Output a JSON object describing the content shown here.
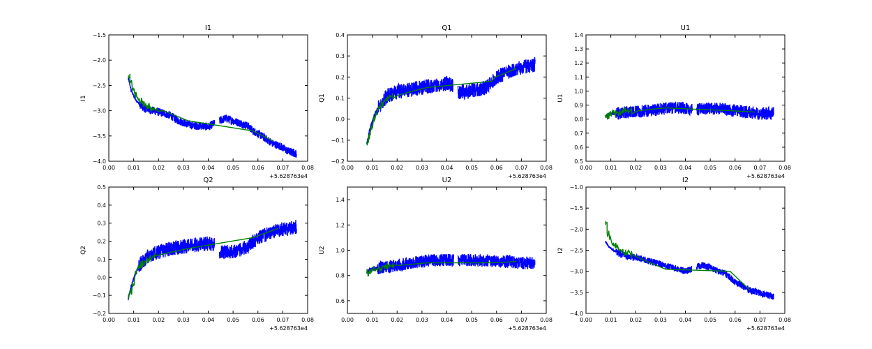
{
  "chart_data": [
    {
      "type": "line",
      "title": "I1",
      "xlabel": "",
      "ylabel": "I1",
      "x_offset_label": "+5.628763e4",
      "xlim": [
        0.0,
        0.08
      ],
      "ylim": [
        -4.0,
        -1.5
      ],
      "xticks": [
        "0.00",
        "0.01",
        "0.02",
        "0.03",
        "0.04",
        "0.05",
        "0.06",
        "0.07",
        "0.08"
      ],
      "yticks": [
        "−4.0",
        "−3.5",
        "−3.0",
        "−2.5",
        "−2.0",
        "−1.5"
      ],
      "grid": false,
      "series": [
        {
          "color": "#0000ff",
          "gap": [
            0.0425,
            0.0445
          ],
          "amp": 0.08,
          "x": [
            0.0078,
            0.009,
            0.011,
            0.014,
            0.018,
            0.022,
            0.025,
            0.028,
            0.031,
            0.034,
            0.037,
            0.04,
            0.0425,
            0.0445,
            0.047,
            0.05,
            0.053,
            0.056,
            0.058,
            0.06,
            0.063,
            0.066,
            0.069,
            0.072,
            0.0755
          ],
          "y": [
            -2.35,
            -2.6,
            -2.8,
            -2.95,
            -3.0,
            -3.05,
            -3.1,
            -3.2,
            -3.25,
            -3.3,
            -3.3,
            -3.32,
            -3.25,
            -3.2,
            -3.15,
            -3.2,
            -3.25,
            -3.3,
            -3.4,
            -3.45,
            -3.55,
            -3.65,
            -3.7,
            -3.8,
            -3.85
          ]
        },
        {
          "color": "#008000",
          "x": [
            0.0078,
            0.0085,
            0.0095,
            0.0105,
            0.0115,
            0.0125,
            0.0135,
            0.0145,
            0.0155,
            0.0165,
            0.0175,
            0.019,
            0.022,
            0.032,
            0.058,
            0.066
          ],
          "y": [
            -2.3,
            -2.45,
            -2.6,
            -2.7,
            -2.75,
            -2.8,
            -2.85,
            -2.9,
            -2.9,
            -2.95,
            -2.95,
            -3.0,
            -3.0,
            -3.2,
            -3.4,
            -3.6
          ]
        }
      ]
    },
    {
      "type": "line",
      "title": "Q1",
      "xlabel": "",
      "ylabel": "Q1",
      "x_offset_label": "+5.628763e4",
      "xlim": [
        0.0,
        0.08
      ],
      "ylim": [
        -0.2,
        0.4
      ],
      "xticks": [
        "0.00",
        "0.01",
        "0.02",
        "0.03",
        "0.04",
        "0.05",
        "0.06",
        "0.07",
        "0.08"
      ],
      "yticks": [
        "−0.2",
        "−0.1",
        "0.0",
        "0.1",
        "0.2",
        "0.3",
        "0.4"
      ],
      "grid": false,
      "series": [
        {
          "color": "#0000ff",
          "gap": [
            0.0425,
            0.0445
          ],
          "amp": 0.035,
          "x": [
            0.0078,
            0.009,
            0.011,
            0.013,
            0.016,
            0.02,
            0.025,
            0.03,
            0.035,
            0.04,
            0.0425,
            0.0445,
            0.048,
            0.052,
            0.056,
            0.06,
            0.064,
            0.068,
            0.072,
            0.0755
          ],
          "y": [
            -0.12,
            -0.05,
            0.02,
            0.07,
            0.11,
            0.13,
            0.14,
            0.15,
            0.16,
            0.17,
            0.16,
            0.13,
            0.13,
            0.14,
            0.15,
            0.2,
            0.22,
            0.24,
            0.25,
            0.26
          ]
        },
        {
          "color": "#008000",
          "x": [
            0.0078,
            0.0085,
            0.0095,
            0.0105,
            0.0115,
            0.0125,
            0.0135,
            0.0145,
            0.0155,
            0.0165,
            0.018,
            0.022,
            0.032,
            0.058,
            0.0595,
            0.068
          ],
          "y": [
            -0.11,
            -0.08,
            -0.04,
            0.0,
            0.03,
            0.05,
            0.07,
            0.08,
            0.09,
            0.1,
            0.11,
            0.12,
            0.15,
            0.18,
            0.2,
            0.24
          ]
        }
      ]
    },
    {
      "type": "line",
      "title": "U1",
      "xlabel": "",
      "ylabel": "U1",
      "x_offset_label": "+5.628763e4",
      "xlim": [
        0.0,
        0.08
      ],
      "ylim": [
        0.5,
        1.4
      ],
      "xticks": [
        "0.00",
        "0.01",
        "0.02",
        "0.03",
        "0.04",
        "0.05",
        "0.06",
        "0.07",
        "0.08"
      ],
      "yticks": [
        "0.5",
        "0.6",
        "0.7",
        "0.8",
        "0.9",
        "1.0",
        "1.1",
        "1.2",
        "1.3",
        "1.4"
      ],
      "grid": false,
      "series": [
        {
          "color": "#0000ff",
          "gap": [
            0.0428,
            0.0445
          ],
          "amp": 0.045,
          "x": [
            0.0078,
            0.01,
            0.013,
            0.016,
            0.02,
            0.025,
            0.03,
            0.035,
            0.04,
            0.0428,
            0.0445,
            0.05,
            0.055,
            0.06,
            0.065,
            0.07,
            0.0755
          ],
          "y": [
            0.82,
            0.84,
            0.84,
            0.85,
            0.85,
            0.86,
            0.87,
            0.88,
            0.88,
            0.87,
            0.87,
            0.88,
            0.87,
            0.86,
            0.85,
            0.84,
            0.84
          ]
        },
        {
          "color": "#008000",
          "x": [
            0.0078,
            0.0085,
            0.0095,
            0.0105,
            0.0115,
            0.0125,
            0.0135,
            0.0145,
            0.0155,
            0.0165,
            0.018,
            0.021,
            0.032,
            0.058,
            0.068
          ],
          "y": [
            0.83,
            0.82,
            0.84,
            0.85,
            0.84,
            0.85,
            0.85,
            0.86,
            0.86,
            0.86,
            0.86,
            0.86,
            0.88,
            0.86,
            0.85
          ]
        }
      ]
    },
    {
      "type": "line",
      "title": "Q2",
      "xlabel": "",
      "ylabel": "Q2",
      "x_offset_label": "+5.628763e4",
      "xlim": [
        0.0,
        0.08
      ],
      "ylim": [
        -0.2,
        0.5
      ],
      "xticks": [
        "0.00",
        "0.01",
        "0.02",
        "0.03",
        "0.04",
        "0.05",
        "0.06",
        "0.07",
        "0.08"
      ],
      "yticks": [
        "−0.2",
        "−0.1",
        "0.0",
        "0.1",
        "0.2",
        "0.3",
        "0.4",
        "0.5"
      ],
      "grid": false,
      "series": [
        {
          "color": "#0000ff",
          "gap": [
            0.0425,
            0.0445
          ],
          "amp": 0.04,
          "x": [
            0.0078,
            0.009,
            0.011,
            0.013,
            0.016,
            0.02,
            0.025,
            0.03,
            0.035,
            0.04,
            0.0425,
            0.0445,
            0.048,
            0.052,
            0.056,
            0.06,
            0.064,
            0.068,
            0.072,
            0.0755
          ],
          "y": [
            -0.12,
            -0.05,
            0.03,
            0.08,
            0.12,
            0.14,
            0.16,
            0.17,
            0.18,
            0.19,
            0.18,
            0.14,
            0.14,
            0.15,
            0.17,
            0.22,
            0.24,
            0.26,
            0.27,
            0.28
          ]
        },
        {
          "color": "#008000",
          "x": [
            0.0078,
            0.0085,
            0.0095,
            0.0105,
            0.0115,
            0.0125,
            0.0135,
            0.0145,
            0.0155,
            0.0165,
            0.018,
            0.022,
            0.032,
            0.058,
            0.068
          ],
          "y": [
            -0.1,
            -0.08,
            -0.03,
            0.02,
            0.05,
            0.07,
            0.08,
            0.09,
            0.1,
            0.11,
            0.12,
            0.13,
            0.16,
            0.22,
            0.27
          ]
        }
      ]
    },
    {
      "type": "line",
      "title": "U2",
      "xlabel": "",
      "ylabel": "U2",
      "x_offset_label": "+5.628763e4",
      "xlim": [
        0.0,
        0.08
      ],
      "ylim": [
        0.5,
        1.5
      ],
      "xticks": [
        "0.00",
        "0.01",
        "0.02",
        "0.03",
        "0.04",
        "0.05",
        "0.06",
        "0.07",
        "0.08"
      ],
      "yticks": [
        "0.6",
        "0.8",
        "1.0",
        "1.2",
        "1.4"
      ],
      "grid": false,
      "series": [
        {
          "color": "#0000ff",
          "gap": [
            0.0428,
            0.0445
          ],
          "amp": 0.05,
          "x": [
            0.0078,
            0.01,
            0.013,
            0.016,
            0.02,
            0.025,
            0.03,
            0.035,
            0.04,
            0.0428,
            0.0445,
            0.05,
            0.055,
            0.06,
            0.065,
            0.07,
            0.0755
          ],
          "y": [
            0.83,
            0.85,
            0.86,
            0.87,
            0.88,
            0.9,
            0.91,
            0.92,
            0.92,
            0.92,
            0.92,
            0.92,
            0.92,
            0.91,
            0.91,
            0.9,
            0.9
          ]
        },
        {
          "color": "#008000",
          "x": [
            0.0078,
            0.0085,
            0.0095,
            0.0105,
            0.0115,
            0.0125,
            0.0135,
            0.0145,
            0.0155,
            0.0165,
            0.018,
            0.021,
            0.032,
            0.058,
            0.068
          ],
          "y": [
            0.82,
            0.82,
            0.84,
            0.85,
            0.85,
            0.86,
            0.86,
            0.87,
            0.87,
            0.87,
            0.88,
            0.88,
            0.9,
            0.9,
            0.91
          ]
        }
      ]
    },
    {
      "type": "line",
      "title": "I2",
      "xlabel": "",
      "ylabel": "I2",
      "x_offset_label": "+5.628763e4",
      "xlim": [
        0.0,
        0.08
      ],
      "ylim": [
        -4.0,
        -1.0
      ],
      "xticks": [
        "0.00",
        "0.01",
        "0.02",
        "0.03",
        "0.04",
        "0.05",
        "0.06",
        "0.07",
        "0.08"
      ],
      "yticks": [
        "−4.0",
        "−3.5",
        "−3.0",
        "−2.5",
        "−2.0",
        "−1.5",
        "−1.0"
      ],
      "grid": false,
      "series": [
        {
          "color": "#0000ff",
          "gap": [
            0.0425,
            0.0445
          ],
          "amp": 0.08,
          "x": [
            0.0078,
            0.009,
            0.011,
            0.014,
            0.018,
            0.022,
            0.025,
            0.028,
            0.031,
            0.034,
            0.037,
            0.04,
            0.0425,
            0.0445,
            0.047,
            0.05,
            0.053,
            0.056,
            0.058,
            0.06,
            0.063,
            0.066,
            0.069,
            0.072,
            0.0755
          ],
          "y": [
            -2.3,
            -2.4,
            -2.5,
            -2.6,
            -2.65,
            -2.7,
            -2.75,
            -2.8,
            -2.85,
            -2.9,
            -2.95,
            -3.0,
            -2.95,
            -2.9,
            -2.85,
            -2.9,
            -3.0,
            -3.05,
            -3.15,
            -3.25,
            -3.35,
            -3.45,
            -3.5,
            -3.55,
            -3.6
          ]
        },
        {
          "color": "#008000",
          "x": [
            0.0078,
            0.0085,
            0.0095,
            0.0105,
            0.0115,
            0.0125,
            0.0135,
            0.0145,
            0.0155,
            0.0165,
            0.018,
            0.022,
            0.032,
            0.058,
            0.066
          ],
          "y": [
            -1.9,
            -2.1,
            -2.25,
            -2.35,
            -2.4,
            -2.45,
            -2.5,
            -2.5,
            -2.55,
            -2.55,
            -2.6,
            -2.7,
            -2.95,
            -3.0,
            -3.45
          ]
        }
      ]
    }
  ]
}
